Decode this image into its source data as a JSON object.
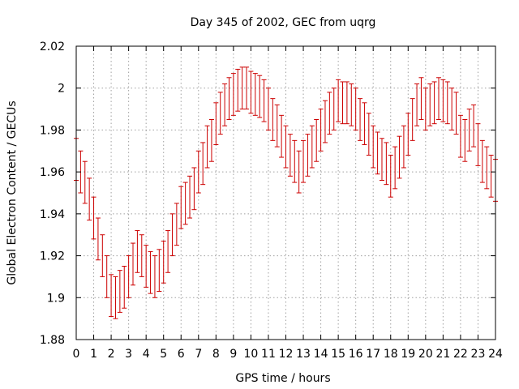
{
  "chart_data": {
    "type": "scatter",
    "title": "Day 345 of 2002, GEC from uqrg",
    "xlabel": "GPS time / hours",
    "ylabel": "Global Electron Content / GECUs",
    "xlim": [
      0,
      24
    ],
    "ylim": [
      1.88,
      2.02
    ],
    "x_ticks": [
      0,
      1,
      2,
      3,
      4,
      5,
      6,
      7,
      8,
      9,
      10,
      11,
      12,
      13,
      14,
      15,
      16,
      17,
      18,
      19,
      20,
      21,
      22,
      23,
      24
    ],
    "y_ticks": [
      1.88,
      1.9,
      1.92,
      1.94,
      1.96,
      1.98,
      2.0,
      2.02
    ],
    "y_tick_labels": [
      "1.88",
      "1.9",
      "1.92",
      "1.94",
      "1.96",
      "1.98",
      "2",
      "2.02"
    ],
    "grid": true,
    "legend": "none",
    "error_bar_half_width": 0.01,
    "series": [
      {
        "color": "#cc0000",
        "x": [
          0,
          0.25,
          0.5,
          0.75,
          1,
          1.25,
          1.5,
          1.75,
          2,
          2.25,
          2.5,
          2.75,
          3,
          3.25,
          3.5,
          3.75,
          4,
          4.25,
          4.5,
          4.75,
          5,
          5.25,
          5.5,
          5.75,
          6,
          6.25,
          6.5,
          6.75,
          7,
          7.25,
          7.5,
          7.75,
          8,
          8.25,
          8.5,
          8.75,
          9,
          9.25,
          9.5,
          9.75,
          10,
          10.25,
          10.5,
          10.75,
          11,
          11.25,
          11.5,
          11.75,
          12,
          12.25,
          12.5,
          12.75,
          13,
          13.25,
          13.5,
          13.75,
          14,
          14.25,
          14.5,
          14.75,
          15,
          15.25,
          15.5,
          15.75,
          16,
          16.25,
          16.5,
          16.75,
          17,
          17.25,
          17.5,
          17.75,
          18,
          18.25,
          18.5,
          18.75,
          19,
          19.25,
          19.5,
          19.75,
          20,
          20.25,
          20.5,
          20.75,
          21,
          21.25,
          21.5,
          21.75,
          22,
          22.25,
          22.5,
          22.75,
          23,
          23.25,
          23.5,
          23.75,
          24
        ],
        "y": [
          1.966,
          1.96,
          1.955,
          1.947,
          1.938,
          1.928,
          1.92,
          1.91,
          1.901,
          1.9,
          1.903,
          1.905,
          1.91,
          1.916,
          1.922,
          1.92,
          1.915,
          1.912,
          1.91,
          1.913,
          1.917,
          1.922,
          1.93,
          1.935,
          1.943,
          1.945,
          1.948,
          1.952,
          1.96,
          1.964,
          1.972,
          1.975,
          1.983,
          1.988,
          1.992,
          1.995,
          1.997,
          1.999,
          2.0,
          2.0,
          1.998,
          1.997,
          1.996,
          1.994,
          1.99,
          1.985,
          1.982,
          1.977,
          1.972,
          1.968,
          1.965,
          1.96,
          1.965,
          1.968,
          1.972,
          1.975,
          1.98,
          1.984,
          1.988,
          1.99,
          1.994,
          1.993,
          1.993,
          1.992,
          1.99,
          1.985,
          1.983,
          1.978,
          1.972,
          1.969,
          1.966,
          1.964,
          1.958,
          1.962,
          1.967,
          1.972,
          1.978,
          1.985,
          1.992,
          1.995,
          1.99,
          1.992,
          1.993,
          1.995,
          1.994,
          1.993,
          1.99,
          1.988,
          1.977,
          1.975,
          1.98,
          1.982,
          1.973,
          1.965,
          1.962,
          1.958,
          1.956
        ]
      }
    ]
  }
}
